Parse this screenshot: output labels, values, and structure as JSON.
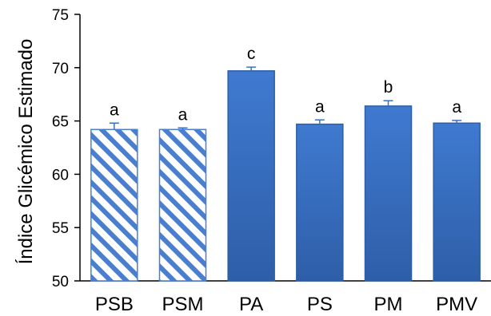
{
  "chart_data": {
    "type": "bar",
    "ylabel": "Índice Glicémico Estimado",
    "xlabel": "",
    "title": "",
    "ylim": [
      50,
      75
    ],
    "yticks": [
      50,
      55,
      60,
      65,
      70,
      75
    ],
    "categories": [
      "PSB",
      "PSM",
      "PA",
      "PS",
      "PM",
      "PMV"
    ],
    "values": [
      64.2,
      64.2,
      69.7,
      64.7,
      66.4,
      64.8
    ],
    "errors": [
      0.6,
      0.15,
      0.35,
      0.4,
      0.5,
      0.25
    ],
    "significance": [
      "a",
      "a",
      "c",
      "a",
      "b",
      "a"
    ],
    "fill_style": [
      "hatched",
      "hatched",
      "solid",
      "solid",
      "solid",
      "solid"
    ],
    "grid": false,
    "legend": "none",
    "colors": {
      "bar": "#3a6fc4",
      "bar_dark": "#2e5ea8",
      "hatch": "#4a7fd0",
      "error": "#3a6fc4",
      "axis": "#000000"
    }
  }
}
